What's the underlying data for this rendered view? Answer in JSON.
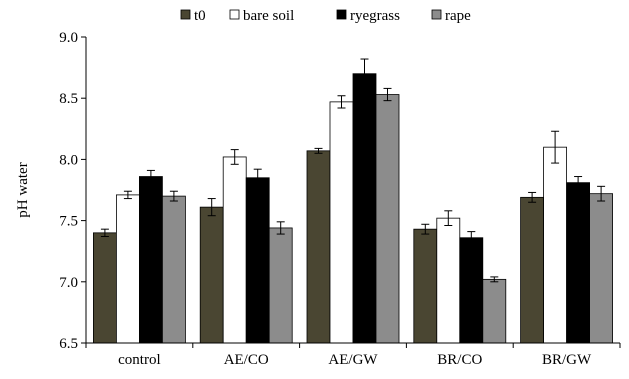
{
  "chart_data": {
    "type": "bar",
    "title": "",
    "xlabel": "",
    "ylabel": "pH water",
    "ylim": [
      6.5,
      9.0
    ],
    "yticks": [
      "6.5",
      "7.0",
      "7.5",
      "8.0",
      "8.5",
      "9.0"
    ],
    "grid": false,
    "legend_position": "top",
    "categories": [
      "control",
      "AE/CO",
      "AE/GW",
      "BR/CO",
      "BR/GW"
    ],
    "series": [
      {
        "name": "t0",
        "color": "#4a4632",
        "values": [
          7.4,
          7.61,
          8.07,
          7.43,
          7.69
        ],
        "errors": [
          0.03,
          0.07,
          0.02,
          0.04,
          0.04
        ]
      },
      {
        "name": "bare soil",
        "color": "#ffffff",
        "values": [
          7.71,
          8.02,
          8.47,
          7.52,
          8.1
        ],
        "errors": [
          0.03,
          0.06,
          0.05,
          0.06,
          0.13
        ]
      },
      {
        "name": "ryegrass",
        "color": "#000000",
        "values": [
          7.86,
          7.85,
          8.7,
          7.36,
          7.81
        ],
        "errors": [
          0.05,
          0.07,
          0.12,
          0.05,
          0.05
        ]
      },
      {
        "name": "rape",
        "color": "#8c8c8c",
        "values": [
          7.7,
          7.44,
          8.53,
          7.02,
          7.72
        ],
        "errors": [
          0.04,
          0.05,
          0.05,
          0.02,
          0.06
        ]
      }
    ]
  }
}
